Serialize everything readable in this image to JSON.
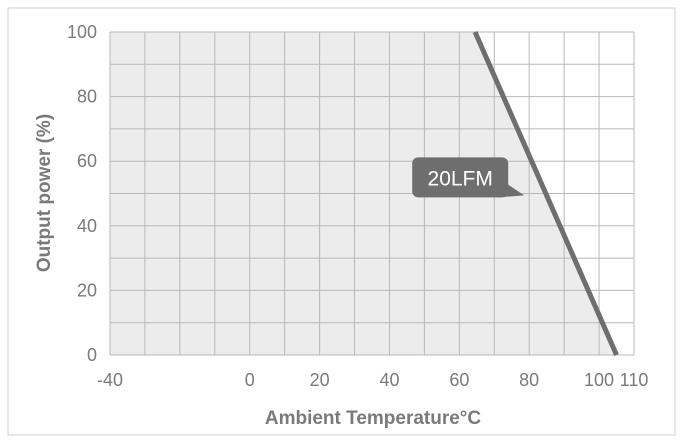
{
  "chart_data": {
    "type": "area",
    "xlabel": "Ambient Temperature°C",
    "ylabel": "Output power (%)",
    "xlim": [
      -40,
      110
    ],
    "ylim": [
      0,
      100
    ],
    "x_ticks": [
      -40,
      0,
      20,
      40,
      60,
      80,
      100,
      110
    ],
    "y_ticks": [
      0,
      20,
      40,
      60,
      80,
      100
    ],
    "x_gridlines": [
      -40,
      -30,
      -20,
      -10,
      0,
      10,
      20,
      30,
      40,
      50,
      60,
      70,
      80,
      90,
      100,
      110
    ],
    "y_gridlines": [
      0,
      10,
      20,
      30,
      40,
      50,
      60,
      70,
      80,
      90,
      100
    ],
    "grid": true,
    "series": [
      {
        "name": "20LFM",
        "x": [
          -40,
          64.5,
          105
        ],
        "y": [
          100,
          100,
          0
        ]
      }
    ],
    "annotations": [
      {
        "text": "20LFM",
        "at": [
          80,
          55
        ]
      }
    ],
    "colors": {
      "area_fill": "#ececec",
      "line": "#6e6e6e",
      "grid": "#b8b8b8",
      "label_bg": "#6e6e6e",
      "label_text": "#ffffff",
      "axis_text": "#7a7a7a"
    }
  }
}
